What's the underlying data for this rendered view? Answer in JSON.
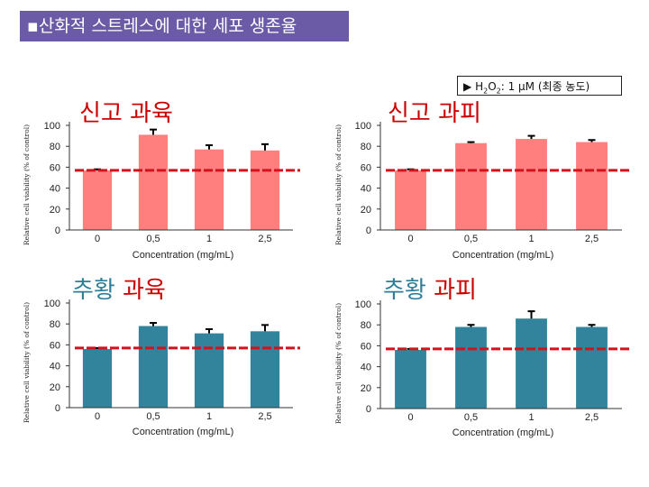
{
  "slide": {
    "title_bullet": "▪",
    "title": "산화적 스트레스에 대한 세포 생존율",
    "note_arrow": "▶",
    "note_prefix": "H",
    "note_sub1": "2",
    "note_mid": "O",
    "note_sub2": "2",
    "note_rest": ": 1 μM (최종 농도)"
  },
  "chart_data": [
    {
      "type": "bar",
      "title": "신고 과육",
      "title_color": "#cc0000",
      "title_suffix_color": "#cc0000",
      "categories": [
        "0",
        "0,5",
        "1",
        "2,5"
      ],
      "values": [
        57,
        91,
        77,
        76
      ],
      "errors": [
        1,
        5,
        4,
        6
      ],
      "bar_color": "#ff7f7f",
      "reference_line": 57,
      "ylim": [
        0,
        100
      ],
      "yticks": [
        0,
        20,
        40,
        60,
        80,
        100
      ],
      "xlabel": "Concentration (mg/mL)",
      "ylabel": "Relative cell viability (% of control)"
    },
    {
      "type": "bar",
      "title": "신고 과피",
      "title_color": "#cc0000",
      "title_suffix_color": "#cc0000",
      "categories": [
        "0",
        "0,5",
        "1",
        "2,5"
      ],
      "values": [
        57,
        83,
        87,
        84
      ],
      "errors": [
        1,
        1,
        3,
        2
      ],
      "bar_color": "#ff7f7f",
      "reference_line": 57,
      "ylim": [
        0,
        100
      ],
      "yticks": [
        0,
        20,
        40,
        60,
        80,
        100
      ],
      "xlabel": "Concentration (mg/mL)",
      "ylabel": "Relative cell viability (% of control)"
    },
    {
      "type": "bar",
      "title": "추황 과육",
      "title_color": "#2e7f96",
      "title_suffix_color": "#cc0000",
      "categories": [
        "0",
        "0,5",
        "1",
        "2,5"
      ],
      "values": [
        56,
        78,
        71,
        73
      ],
      "errors": [
        1,
        3,
        4,
        6
      ],
      "bar_color": "#31849b",
      "reference_line": 57,
      "ylim": [
        0,
        100
      ],
      "yticks": [
        0,
        20,
        40,
        60,
        80,
        100
      ],
      "xlabel": "Concentration (mg/mL)",
      "ylabel": "Relative cell viability (% of control)"
    },
    {
      "type": "bar",
      "title": "추황 과피",
      "title_color": "#2e7f96",
      "title_suffix_color": "#cc0000",
      "categories": [
        "0",
        "0,5",
        "1",
        "2,5"
      ],
      "values": [
        56,
        78,
        86,
        78
      ],
      "errors": [
        1,
        2,
        7,
        2
      ],
      "bar_color": "#31849b",
      "reference_line": 57,
      "ylim": [
        0,
        100
      ],
      "yticks": [
        0,
        20,
        40,
        60,
        80,
        100
      ],
      "xlabel": "Concentration (mg/mL)",
      "ylabel": "Relative cell viability (% of control)"
    }
  ]
}
